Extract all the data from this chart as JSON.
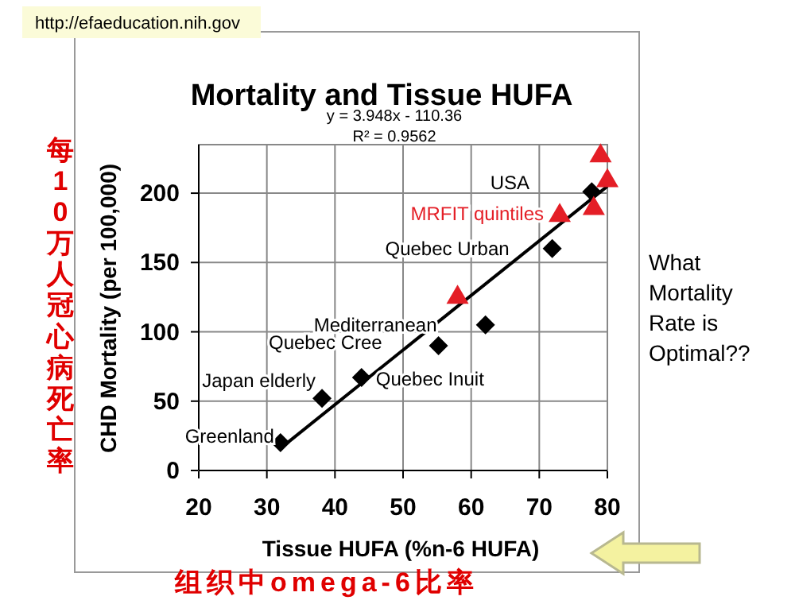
{
  "chart_data": {
    "type": "scatter",
    "title": "Mortality and Tissue HUFA",
    "xlabel": "Tissue HUFA (%n-6 HUFA)",
    "ylabel": "CHD Mortality (per 100,000)",
    "xlim": [
      20,
      80
    ],
    "ylim": [
      0,
      235
    ],
    "xticks": [
      20,
      30,
      40,
      50,
      60,
      70,
      80
    ],
    "yticks": [
      0,
      50,
      100,
      150,
      200
    ],
    "grid": true,
    "series": [
      {
        "type": "scatter",
        "marker": "diamond",
        "color": "#000000",
        "x": [
          32,
          38.1,
          43.9,
          55.2,
          62.1,
          71.9,
          77.7
        ],
        "values": [
          20,
          52,
          67,
          90,
          105,
          160,
          201
        ]
      },
      {
        "type": "scatter",
        "name": "MRFIT quintiles",
        "marker": "triangle",
        "color": "#e41e26",
        "x": [
          58,
          73,
          78,
          80,
          79
        ],
        "values": [
          126,
          185,
          190,
          210,
          228
        ]
      },
      {
        "type": "line",
        "color": "#000000",
        "x": [
          32,
          80
        ],
        "values": [
          16,
          205
        ]
      }
    ],
    "annotations": [
      {
        "text": "Greenland",
        "x": 32,
        "y": 20
      },
      {
        "text": "Japan elderly",
        "x": 38.1,
        "y": 52
      },
      {
        "text": "Quebec Cree",
        "x": 43.9,
        "y": 67
      },
      {
        "text": "Mediterranean",
        "x": 55.2,
        "y": 90
      },
      {
        "text": "Quebec Inuit",
        "x": 43.9,
        "y": 67
      },
      {
        "text": "Quebec Urban",
        "x": 71.9,
        "y": 160
      },
      "y = 3.948x - 110.36",
      "R² = 0.9562",
      "What Mortality Rate is Optimal??",
      "每10万人冠心病死亡率",
      "组织中omega-6比率",
      "http://efaeducation.nih.gov",
      "USA"
    ]
  }
}
